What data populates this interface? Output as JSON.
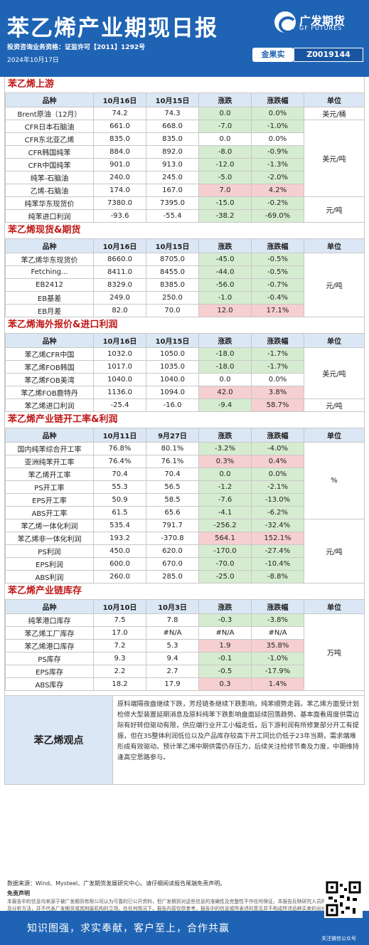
{
  "header": {
    "title": "苯乙烯产业期现日报",
    "logo_cn": "广发期货",
    "logo_en": "GF FUTURES",
    "license": "投资咨询业务资格：证监许可【2011】1292号",
    "date": "2024年10月17日",
    "badge_label": "金果实",
    "badge_id": "Z0019144"
  },
  "sections": [
    {
      "title": "苯乙烯上游",
      "headers": [
        "品种",
        "10月16日",
        "10月15日",
        "涨跌",
        "涨跌幅",
        "单位"
      ],
      "rows": [
        {
          "name": "Brent原油（12月）",
          "v1": "74.2",
          "v2": "74.3",
          "chg": "0.0",
          "pct": "0.0%",
          "dir": "neg",
          "unit": "美元/桶",
          "span": 1
        },
        {
          "name": "CFR日本石脑油",
          "v1": "661.0",
          "v2": "668.0",
          "chg": "-7.0",
          "pct": "-1.0%",
          "dir": "neg",
          "unit": "美元/吨",
          "span": 6
        },
        {
          "name": "CFR东北亚乙烯",
          "v1": "835.0",
          "v2": "835.0",
          "chg": "0.0",
          "pct": "0.0%",
          "dir": "none"
        },
        {
          "name": "CFR韩国纯苯",
          "v1": "884.0",
          "v2": "892.0",
          "chg": "-8.0",
          "pct": "-0.9%",
          "dir": "neg"
        },
        {
          "name": "CFR中国纯苯",
          "v1": "901.0",
          "v2": "913.0",
          "chg": "-12.0",
          "pct": "-1.3%",
          "dir": "neg"
        },
        {
          "name": "纯苯-石脑油",
          "v1": "240.0",
          "v2": "245.0",
          "chg": "-5.0",
          "pct": "-2.0%",
          "dir": "neg"
        },
        {
          "name": "乙烯-石脑油",
          "v1": "174.0",
          "v2": "167.0",
          "chg": "7.0",
          "pct": "4.2%",
          "dir": "pos"
        },
        {
          "name": "纯苯华东现货价",
          "v1": "7380.0",
          "v2": "7395.0",
          "chg": "-15.0",
          "pct": "-0.2%",
          "dir": "neg",
          "unit": "元/吨",
          "span": 2
        },
        {
          "name": "纯苯进口利润",
          "v1": "-93.6",
          "v2": "-55.4",
          "chg": "-38.2",
          "pct": "-69.0%",
          "dir": "neg"
        }
      ]
    },
    {
      "title": "苯乙烯现货&期货",
      "headers": [
        "品种",
        "10月16日",
        "10月15日",
        "涨跌",
        "涨跌幅",
        "单位"
      ],
      "rows": [
        {
          "name": "苯乙烯华东现货价",
          "v1": "8660.0",
          "v2": "8705.0",
          "chg": "-45.0",
          "pct": "-0.5%",
          "dir": "neg",
          "unit": "元/吨",
          "span": 5
        },
        {
          "name": "Fetching...",
          "v1": "8411.0",
          "v2": "8455.0",
          "chg": "-44.0",
          "pct": "-0.5%",
          "dir": "neg"
        },
        {
          "name": "EB2412",
          "v1": "8329.0",
          "v2": "8385.0",
          "chg": "-56.0",
          "pct": "-0.7%",
          "dir": "neg"
        },
        {
          "name": "EB基差",
          "v1": "249.0",
          "v2": "250.0",
          "chg": "-1.0",
          "pct": "-0.4%",
          "dir": "neg"
        },
        {
          "name": "EB月差",
          "v1": "82.0",
          "v2": "70.0",
          "chg": "12.0",
          "pct": "17.1%",
          "dir": "pos"
        }
      ]
    },
    {
      "title": "苯乙烯海外报价&进口利润",
      "headers": [
        "品种",
        "10月16日",
        "10月15日",
        "涨跌",
        "涨跌幅",
        "单位"
      ],
      "rows": [
        {
          "name": "苯乙烯CFR中国",
          "v1": "1032.0",
          "v2": "1050.0",
          "chg": "-18.0",
          "pct": "-1.7%",
          "dir": "neg",
          "unit": "美元/吨",
          "span": 4
        },
        {
          "name": "苯乙烯FOB韩国",
          "v1": "1017.0",
          "v2": "1035.0",
          "chg": "-18.0",
          "pct": "-1.7%",
          "dir": "neg"
        },
        {
          "name": "苯乙烯FOB美湾",
          "v1": "1040.0",
          "v2": "1040.0",
          "chg": "0.0",
          "pct": "0.0%",
          "dir": "none"
        },
        {
          "name": "苯乙烯FOB鹿特丹",
          "v1": "1136.0",
          "v2": "1094.0",
          "chg": "42.0",
          "pct": "3.8%",
          "dir": "pos"
        },
        {
          "name": "苯乙烯进口利润",
          "v1": "-25.4",
          "v2": "-16.0",
          "chg": "-9.4",
          "pct": "58.7%",
          "dir": "neg",
          "pct_dir": "pos",
          "unit": "元/吨",
          "span": 1
        }
      ]
    },
    {
      "title": "苯乙烯产业链开工率&利润",
      "headers": [
        "品种",
        "10月11日",
        "9月27日",
        "涨跌",
        "涨跌幅",
        "单位"
      ],
      "rows": [
        {
          "name": "国内纯苯综合开工率",
          "v1": "76.8%",
          "v2": "80.1%",
          "chg": "-3.2%",
          "pct": "-4.0%",
          "dir": "neg",
          "unit": "%",
          "span": 6
        },
        {
          "name": "亚洲纯苯开工率",
          "v1": "76.4%",
          "v2": "76.1%",
          "chg": "0.3%",
          "pct": "0.4%",
          "dir": "pos"
        },
        {
          "name": "苯乙烯开工率",
          "v1": "70.4",
          "v2": "70.4",
          "chg": "0.0",
          "pct": "0.0%",
          "dir": "neg"
        },
        {
          "name": "PS开工率",
          "v1": "55.3",
          "v2": "56.5",
          "chg": "-1.2",
          "pct": "-2.1%",
          "dir": "neg"
        },
        {
          "name": "EPS开工率",
          "v1": "50.9",
          "v2": "58.5",
          "chg": "-7.6",
          "pct": "-13.0%",
          "dir": "neg"
        },
        {
          "name": "ABS开工率",
          "v1": "61.5",
          "v2": "65.6",
          "chg": "-4.1",
          "pct": "-6.2%",
          "dir": "neg"
        },
        {
          "name": "苯乙烯一体化利润",
          "v1": "535.4",
          "v2": "791.7",
          "chg": "-256.2",
          "pct": "-32.4%",
          "dir": "neg",
          "unit": "元/吨",
          "span": 5
        },
        {
          "name": "苯乙烯非一体化利润",
          "v1": "193.2",
          "v2": "-370.8",
          "chg": "564.1",
          "pct": "152.1%",
          "dir": "pos"
        },
        {
          "name": "PS利润",
          "v1": "450.0",
          "v2": "620.0",
          "chg": "-170.0",
          "pct": "-27.4%",
          "dir": "neg"
        },
        {
          "name": "EPS利润",
          "v1": "600.0",
          "v2": "670.0",
          "chg": "-70.0",
          "pct": "-10.4%",
          "dir": "neg"
        },
        {
          "name": "ABS利润",
          "v1": "260.0",
          "v2": "285.0",
          "chg": "-25.0",
          "pct": "-8.8%",
          "dir": "neg"
        }
      ]
    },
    {
      "title": "苯乙烯产业链库存",
      "headers": [
        "品种",
        "10月10日",
        "10月3日",
        "涨跌",
        "涨跌幅",
        "单位"
      ],
      "rows": [
        {
          "name": "纯苯港口库存",
          "v1": "7.5",
          "v2": "7.8",
          "chg": "-0.3",
          "pct": "-3.8%",
          "dir": "neg",
          "unit": "万吨",
          "span": 6
        },
        {
          "name": "苯乙烯工厂库存",
          "v1": "17.0",
          "v2": "#N/A",
          "chg": "#N/A",
          "pct": "#N/A",
          "dir": "none"
        },
        {
          "name": "苯乙烯港口库存",
          "v1": "7.2",
          "v2": "5.3",
          "chg": "1.9",
          "pct": "35.8%",
          "dir": "pos"
        },
        {
          "name": "PS库存",
          "v1": "9.3",
          "v2": "9.4",
          "chg": "-0.1",
          "pct": "-1.0%",
          "dir": "neg"
        },
        {
          "name": "EPS库存",
          "v1": "2.2",
          "v2": "2.7",
          "chg": "-0.5",
          "pct": "-17.9%",
          "dir": "neg"
        },
        {
          "name": "ABS库存",
          "v1": "18.2",
          "v2": "17.9",
          "chg": "0.3",
          "pct": "1.4%",
          "dir": "pos"
        }
      ]
    }
  ],
  "view": {
    "label": "苯乙烯观点",
    "text": "原料端隔夜盘继续下跌，芳烃链条继续下跌影响，纯苯顺势走弱。苯乙烯方面受计划检修大型装置延期消息及原料纯苯下跌影响盘面延续回落趋势。基本面看周度供需边际有好转但驱动有限，供应端行业开工小幅走低，后下游利润有所修复部分开工有提振，但在3S整体利润低位以及产品库存较高下开工同比仍低于23年当期，需求端难形成有效驱动。预计苯乙烯中期供需仍存压力，后续关注检修节奏及力度，中期维持逢高空思路参与。"
  },
  "footer": {
    "source": "数据来源：Wind、Mysteel、广发期货发展研究中心。请仔细阅读报告尾端免责声明。",
    "disclaimer_title": "免责声明",
    "disclaimer_text": "本报告中的信息均来源于被广发期货有限公司认为可靠的已公开资料，但广发期货对这些信息的准确性及完整性不作任何保证。本报告反映研究人员的不同观点、见解及分析方法，并不代表广发期货或其附属机构的立场。在任何情况下，报告内容仅供参考，报告中的信息或所表述的意见并不构成所述品种买卖的出价或询价，投资者据此投资，风险自担。本报告旨在发送给广发期货特定客户及其他专业人士，版权归广发期货所有，未经广发期货书面授权，任何人不得对本报告进行任何形式的发布、复制、如引用、刊发，需注明出处为\"广发期货\"。",
    "slogan": "知识图强，求实奉献，客户至上，合作共赢",
    "qr_caption": "关注微信公众号"
  }
}
